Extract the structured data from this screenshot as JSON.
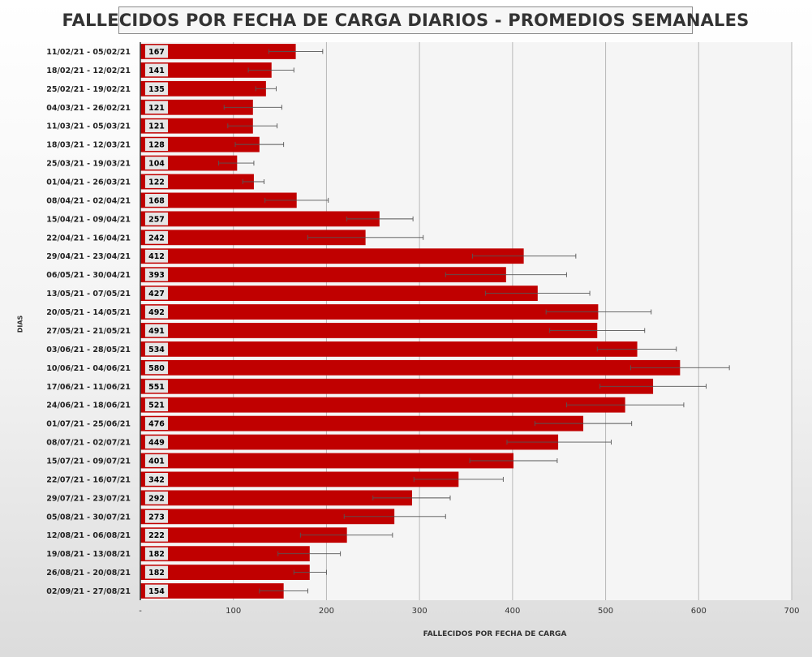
{
  "chart_data": {
    "type": "bar",
    "orientation": "horizontal",
    "title": "FALLECIDOS POR FECHA DE CARGA DIARIOS - PROMEDIOS SEMANALES",
    "xlabel": "FALLECIDOS POR FECHA DE CARGA",
    "ylabel": "DIAS",
    "xlim": [
      0,
      700
    ],
    "xticks": [
      "-",
      "100",
      "200",
      "300",
      "400",
      "500",
      "600",
      "700"
    ],
    "grid": "vertical",
    "bar_color": "#c00000",
    "error_bars": true,
    "categories": [
      "11/02/21 - 05/02/21",
      "18/02/21 - 12/02/21",
      "25/02/21 - 19/02/21",
      "04/03/21 - 26/02/21",
      "11/03/21 - 05/03/21",
      "18/03/21 - 12/03/21",
      "25/03/21 - 19/03/21",
      "01/04/21 - 26/03/21",
      "08/04/21 - 02/04/21",
      "15/04/21 - 09/04/21",
      "22/04/21 - 16/04/21",
      "29/04/21 - 23/04/21",
      "06/05/21 - 30/04/21",
      "13/05/21 - 07/05/21",
      "20/05/21 - 14/05/21",
      "27/05/21 - 21/05/21",
      "03/06/21 - 28/05/21",
      "10/06/21 - 04/06/21",
      "17/06/21 - 11/06/21",
      "24/06/21 - 18/06/21",
      "01/07/21 - 25/06/21",
      "08/07/21 - 02/07/21",
      "15/07/21 - 09/07/21",
      "22/07/21 - 16/07/21",
      "29/07/21 - 23/07/21",
      "05/08/21 - 30/07/21",
      "12/08/21 - 06/08/21",
      "19/08/21 - 13/08/21",
      "26/08/21 - 20/08/21",
      "02/09/21 - 27/08/21"
    ],
    "values": [
      167,
      141,
      135,
      121,
      121,
      128,
      104,
      122,
      168,
      257,
      242,
      412,
      393,
      427,
      492,
      491,
      534,
      580,
      551,
      521,
      476,
      449,
      401,
      342,
      292,
      273,
      222,
      182,
      182,
      154
    ],
    "error_low": [
      138,
      116,
      124,
      90,
      94,
      102,
      84,
      110,
      134,
      222,
      180,
      357,
      328,
      371,
      436,
      440,
      491,
      527,
      494,
      458,
      424,
      394,
      354,
      294,
      250,
      219,
      172,
      148,
      165,
      128
    ],
    "error_high": [
      196,
      165,
      146,
      152,
      147,
      154,
      122,
      133,
      202,
      293,
      304,
      468,
      458,
      483,
      549,
      542,
      576,
      633,
      608,
      584,
      528,
      506,
      448,
      390,
      333,
      328,
      271,
      215,
      200,
      180
    ]
  }
}
